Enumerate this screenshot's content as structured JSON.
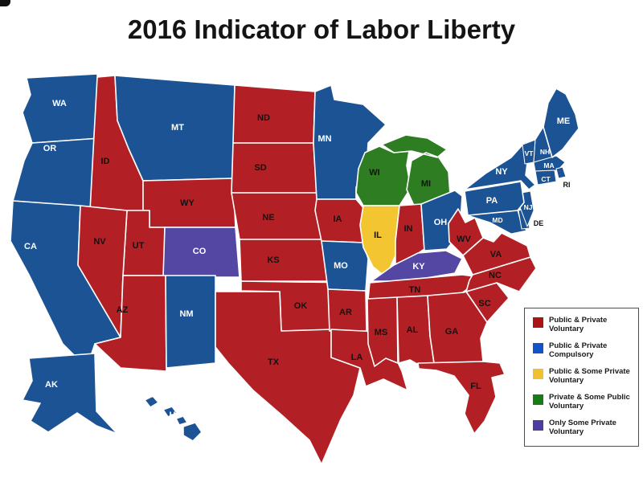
{
  "title": "2016 Indicator of Labor Liberty",
  "legend": {
    "items": [
      {
        "id": "pub_priv_vol",
        "color": "#A91414",
        "lines": [
          "Public & Private",
          "Voluntary"
        ]
      },
      {
        "id": "pub_priv_comp",
        "color": "#1353C8",
        "lines": [
          "Public & Private",
          "Compulsory"
        ]
      },
      {
        "id": "pub_some_priv_vol",
        "color": "#EFC02F",
        "lines": [
          "Public & Some Private",
          "Voluntary"
        ]
      },
      {
        "id": "priv_some_pub_vol",
        "color": "#1B7A18",
        "lines": [
          "Private & Some Public",
          "Voluntary"
        ]
      },
      {
        "id": "only_some_priv_vol",
        "color": "#4E3D9E",
        "lines": [
          "Only Some Private",
          "Voluntary"
        ]
      }
    ]
  },
  "map_colors": {
    "pub_priv_vol": "#B22025",
    "pub_priv_comp": "#1B5394",
    "pub_some_priv_vol": "#F2C531",
    "priv_some_pub_vol": "#2E7D22",
    "only_some_priv_vol": "#5347A3"
  },
  "label_colors": {
    "light": "#ffffff",
    "dark": "#121212"
  },
  "states": [
    {
      "abbr": "WA",
      "category": "pub_priv_comp"
    },
    {
      "abbr": "OR",
      "category": "pub_priv_comp"
    },
    {
      "abbr": "CA",
      "category": "pub_priv_comp"
    },
    {
      "abbr": "ID",
      "category": "pub_priv_vol"
    },
    {
      "abbr": "MT",
      "category": "pub_priv_comp"
    },
    {
      "abbr": "WY",
      "category": "pub_priv_vol"
    },
    {
      "abbr": "UT",
      "category": "pub_priv_vol"
    },
    {
      "abbr": "CO",
      "category": "only_some_priv_vol"
    },
    {
      "abbr": "NV",
      "category": "pub_priv_vol"
    },
    {
      "abbr": "AZ",
      "category": "pub_priv_vol"
    },
    {
      "abbr": "NM",
      "category": "pub_priv_comp"
    },
    {
      "abbr": "ND",
      "category": "pub_priv_vol"
    },
    {
      "abbr": "SD",
      "category": "pub_priv_vol"
    },
    {
      "abbr": "NE",
      "category": "pub_priv_vol"
    },
    {
      "abbr": "KS",
      "category": "pub_priv_vol"
    },
    {
      "abbr": "OK",
      "category": "pub_priv_vol"
    },
    {
      "abbr": "TX",
      "category": "pub_priv_vol"
    },
    {
      "abbr": "MN",
      "category": "pub_priv_comp"
    },
    {
      "abbr": "IA",
      "category": "pub_priv_vol"
    },
    {
      "abbr": "MO",
      "category": "pub_priv_comp"
    },
    {
      "abbr": "AR",
      "category": "pub_priv_vol"
    },
    {
      "abbr": "LA",
      "category": "pub_priv_vol"
    },
    {
      "abbr": "WI",
      "category": "priv_some_pub_vol"
    },
    {
      "abbr": "IL",
      "category": "pub_some_priv_vol"
    },
    {
      "abbr": "MI",
      "category": "priv_some_pub_vol"
    },
    {
      "abbr": "IN",
      "category": "pub_priv_vol"
    },
    {
      "abbr": "OH",
      "category": "pub_priv_comp"
    },
    {
      "abbr": "KY",
      "category": "only_some_priv_vol"
    },
    {
      "abbr": "TN",
      "category": "pub_priv_vol"
    },
    {
      "abbr": "MS",
      "category": "pub_priv_vol"
    },
    {
      "abbr": "AL",
      "category": "pub_priv_vol"
    },
    {
      "abbr": "GA",
      "category": "pub_priv_vol"
    },
    {
      "abbr": "FL",
      "category": "pub_priv_vol"
    },
    {
      "abbr": "SC",
      "category": "pub_priv_vol"
    },
    {
      "abbr": "NC",
      "category": "pub_priv_vol"
    },
    {
      "abbr": "VA",
      "category": "pub_priv_vol"
    },
    {
      "abbr": "WV",
      "category": "pub_priv_vol"
    },
    {
      "abbr": "MD",
      "category": "pub_priv_comp"
    },
    {
      "abbr": "DE",
      "category": "pub_priv_comp"
    },
    {
      "abbr": "NJ",
      "category": "pub_priv_comp"
    },
    {
      "abbr": "PA",
      "category": "pub_priv_comp"
    },
    {
      "abbr": "NY",
      "category": "pub_priv_comp"
    },
    {
      "abbr": "VT",
      "category": "pub_priv_comp"
    },
    {
      "abbr": "NH",
      "category": "pub_priv_comp"
    },
    {
      "abbr": "MA",
      "category": "pub_priv_comp"
    },
    {
      "abbr": "CT",
      "category": "pub_priv_comp"
    },
    {
      "abbr": "RI",
      "category": "pub_priv_comp"
    },
    {
      "abbr": "ME",
      "category": "pub_priv_comp"
    },
    {
      "abbr": "AK",
      "category": "pub_priv_comp"
    },
    {
      "abbr": "HI",
      "category": "pub_priv_comp"
    }
  ]
}
